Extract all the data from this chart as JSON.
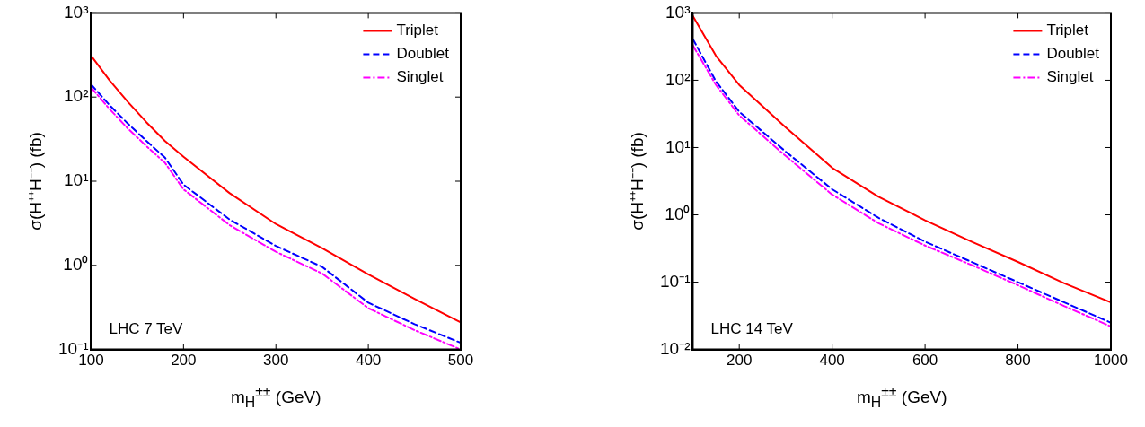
{
  "chart_data": [
    {
      "type": "line",
      "xlabel": "m$_{H}$$^{±±}$   (GeV)",
      "ylabel": "σ(H⁺⁺H⁻⁻)   (fb)",
      "log": "y",
      "grid": false,
      "legend": "top right",
      "marker": "none",
      "annotations": [
        "LHC 7 TeV"
      ],
      "xlim": [
        100,
        500
      ],
      "xticks": [
        100,
        200,
        300,
        400,
        500
      ],
      "ylim": [
        0.1,
        1000
      ],
      "yticks": [
        {
          "value": 0.1,
          "label": "10⁻¹"
        },
        {
          "value": 1,
          "label": "10⁰"
        },
        {
          "value": 10,
          "label": "10¹"
        },
        {
          "value": 100,
          "label": "10²"
        },
        {
          "value": 1000,
          "label": "10³"
        }
      ],
      "x": [
        100,
        120,
        140,
        160,
        180,
        200,
        250,
        300,
        350,
        400,
        450,
        500
      ],
      "series": [
        {
          "name": "Triplet",
          "color": "#ff0000",
          "line_style": "solid",
          "values": [
            310,
            158,
            87,
            50,
            30,
            19.5,
            7.2,
            3.1,
            1.6,
            0.78,
            0.4,
            0.21
          ]
        },
        {
          "name": "Doublet",
          "color": "#0000ff",
          "line_style": "dashed",
          "values": [
            141,
            80,
            48,
            30,
            19,
            9.1,
            3.5,
            1.7,
            0.96,
            0.36,
            0.2,
            0.12
          ]
        },
        {
          "name": "Singlet",
          "color": "#ff00ff",
          "line_style": "dashdot",
          "values": [
            130,
            72,
            42,
            26,
            16.5,
            8,
            3.0,
            1.45,
            0.8,
            0.31,
            0.17,
            0.1
          ]
        }
      ]
    },
    {
      "type": "line",
      "xlabel": "m$_{H}$$^{±±}$   (GeV)",
      "ylabel": "σ(H⁺⁺H⁻⁻)   (fb)",
      "log": "y",
      "grid": false,
      "legend": "top right",
      "marker": "none",
      "annotations": [
        "LHC 14 TeV"
      ],
      "xlim": [
        100,
        1000
      ],
      "xticks": [
        200,
        400,
        600,
        800,
        1000
      ],
      "ylim": [
        0.01,
        1000
      ],
      "yticks": [
        {
          "value": 0.01,
          "label": "10⁻²"
        },
        {
          "value": 0.1,
          "label": "10⁻¹"
        },
        {
          "value": 1,
          "label": "10⁰"
        },
        {
          "value": 10,
          "label": "10¹"
        },
        {
          "value": 100,
          "label": "10²"
        },
        {
          "value": 1000,
          "label": "10³"
        }
      ],
      "x": [
        100,
        150,
        200,
        300,
        400,
        500,
        600,
        700,
        800,
        900,
        1000
      ],
      "series": [
        {
          "name": "Triplet",
          "color": "#ff0000",
          "line_style": "solid",
          "values": [
            900,
            230,
            85,
            20,
            5,
            1.85,
            0.83,
            0.4,
            0.2,
            0.096,
            0.05
          ]
        },
        {
          "name": "Doublet",
          "color": "#0000ff",
          "line_style": "dashed",
          "values": [
            410,
            96,
            34,
            8.7,
            2.4,
            0.9,
            0.4,
            0.2,
            0.1,
            0.05,
            0.025
          ]
        },
        {
          "name": "Singlet",
          "color": "#ff00ff",
          "line_style": "dashdot",
          "values": [
            330,
            85,
            30,
            7.5,
            2.0,
            0.75,
            0.35,
            0.18,
            0.09,
            0.044,
            0.022
          ]
        }
      ]
    }
  ]
}
